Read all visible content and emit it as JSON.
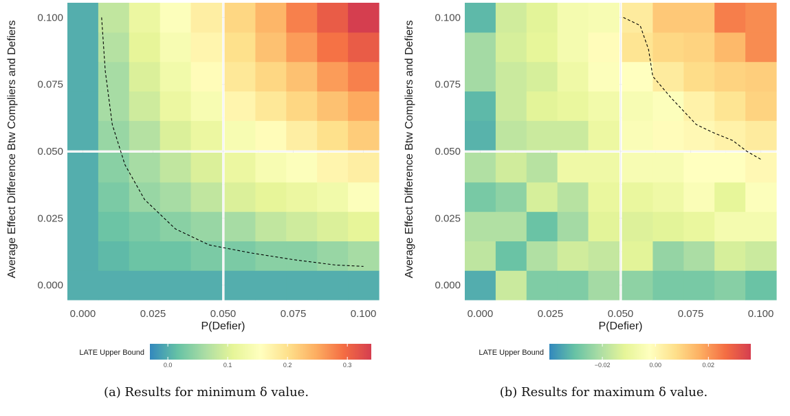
{
  "chart_data": [
    {
      "type": "heatmap",
      "caption": "(a) Results for minimum δ value.",
      "xlabel": "P(Defier)",
      "ylabel": "Average Effect Difference Btw Compliers and Defiers",
      "x": [
        0.0,
        0.011,
        0.022,
        0.033,
        0.044,
        0.056,
        0.067,
        0.078,
        0.089,
        0.1
      ],
      "y": [
        0.0,
        0.011,
        0.022,
        0.033,
        0.044,
        0.056,
        0.067,
        0.078,
        0.089,
        0.1
      ],
      "xticks": [
        "0.000",
        "0.025",
        "0.050",
        "0.075",
        "0.100"
      ],
      "yticks": [
        "0.000",
        "0.025",
        "0.050",
        "0.075",
        "0.100"
      ],
      "values": [
        [
          0.0,
          0.0,
          0.0,
          0.0,
          0.0,
          0.0,
          0.0,
          0.0,
          0.0,
          0.0
        ],
        [
          0.0,
          0.01,
          0.02,
          0.02,
          0.03,
          0.03,
          0.04,
          0.04,
          0.05,
          0.06
        ],
        [
          0.0,
          0.02,
          0.03,
          0.04,
          0.05,
          0.06,
          0.08,
          0.09,
          0.1,
          0.11
        ],
        [
          0.0,
          0.03,
          0.05,
          0.06,
          0.08,
          0.1,
          0.11,
          0.12,
          0.13,
          0.15
        ],
        [
          0.0,
          0.04,
          0.06,
          0.08,
          0.1,
          0.12,
          0.14,
          0.15,
          0.17,
          0.18
        ],
        [
          0.0,
          0.05,
          0.07,
          0.1,
          0.12,
          0.14,
          0.16,
          0.18,
          0.2,
          0.22
        ],
        [
          0.0,
          0.06,
          0.09,
          0.12,
          0.14,
          0.17,
          0.19,
          0.21,
          0.23,
          0.25
        ],
        [
          0.0,
          0.06,
          0.1,
          0.13,
          0.16,
          0.19,
          0.21,
          0.23,
          0.26,
          0.28
        ],
        [
          0.0,
          0.07,
          0.11,
          0.14,
          0.17,
          0.2,
          0.23,
          0.26,
          0.29,
          0.31
        ],
        [
          0.0,
          0.08,
          0.12,
          0.15,
          0.18,
          0.21,
          0.24,
          0.28,
          0.31,
          0.34
        ]
      ],
      "contour": [
        [
          0.0067,
          0.1
        ],
        [
          0.008,
          0.08
        ],
        [
          0.0105,
          0.06
        ],
        [
          0.015,
          0.045
        ],
        [
          0.022,
          0.032
        ],
        [
          0.033,
          0.021
        ],
        [
          0.045,
          0.015
        ],
        [
          0.06,
          0.012
        ],
        [
          0.075,
          0.0095
        ],
        [
          0.09,
          0.0075
        ],
        [
          0.1,
          0.007
        ]
      ],
      "legend": {
        "title": "LATE Upper Bound",
        "min": -0.03,
        "max": 0.34,
        "ticks": [
          0.0,
          0.1,
          0.2,
          0.3
        ],
        "tick_labels": [
          "0.0",
          "0.1",
          "0.2",
          "0.3"
        ]
      },
      "colormap": [
        "#3288bd",
        "#66c2a5",
        "#abdda4",
        "#e6f598",
        "#ffffbf",
        "#fee08b",
        "#fdae61",
        "#f46d43",
        "#d53e4f"
      ]
    },
    {
      "type": "heatmap",
      "caption": "(b) Results for maximum δ value.",
      "xlabel": "P(Defier)",
      "ylabel": "Average Effect Difference Btw Compliers and Defiers",
      "x": [
        0.0,
        0.011,
        0.022,
        0.033,
        0.044,
        0.056,
        0.067,
        0.078,
        0.089,
        0.1
      ],
      "y": [
        0.0,
        0.011,
        0.022,
        0.033,
        0.044,
        0.056,
        0.067,
        0.078,
        0.089,
        0.1
      ],
      "xticks": [
        "0.000",
        "0.025",
        "0.050",
        "0.075",
        "0.100"
      ],
      "yticks": [
        "0.000",
        "0.025",
        "0.050",
        "0.075",
        "0.100"
      ],
      "values": [
        [
          -0.034,
          -0.016,
          -0.027,
          -0.027,
          -0.022,
          -0.025,
          -0.028,
          -0.028,
          -0.026,
          -0.03
        ],
        [
          -0.018,
          -0.03,
          -0.02,
          -0.015,
          -0.017,
          -0.012,
          -0.024,
          -0.021,
          -0.014,
          -0.016
        ],
        [
          -0.02,
          -0.02,
          -0.03,
          -0.022,
          -0.012,
          -0.013,
          -0.012,
          -0.01,
          -0.006,
          -0.006
        ],
        [
          -0.028,
          -0.025,
          -0.014,
          -0.019,
          -0.01,
          -0.01,
          -0.008,
          -0.004,
          -0.011,
          -0.003
        ],
        [
          -0.02,
          -0.015,
          -0.019,
          -0.008,
          -0.008,
          -0.005,
          -0.005,
          -0.002,
          -0.002,
          0.0
        ],
        [
          -0.033,
          -0.018,
          -0.016,
          -0.016,
          -0.009,
          -0.004,
          -0.001,
          0.0,
          0.002,
          0.004
        ],
        [
          -0.032,
          -0.016,
          -0.012,
          -0.01,
          -0.007,
          -0.005,
          -0.003,
          0.002,
          0.006,
          0.01
        ],
        [
          -0.022,
          -0.016,
          -0.014,
          -0.008,
          -0.003,
          -0.002,
          0.004,
          0.008,
          0.01,
          0.011
        ],
        [
          -0.022,
          -0.014,
          -0.011,
          -0.006,
          -0.001,
          0.006,
          0.009,
          0.01,
          0.015,
          0.022
        ],
        [
          -0.032,
          -0.015,
          -0.012,
          -0.006,
          -0.005,
          0.004,
          0.012,
          0.012,
          0.024,
          0.022
        ]
      ],
      "contour": [
        [
          0.051,
          0.1
        ],
        [
          0.057,
          0.097
        ],
        [
          0.06,
          0.088
        ],
        [
          0.0615,
          0.078
        ],
        [
          0.068,
          0.07
        ],
        [
          0.077,
          0.06
        ],
        [
          0.083,
          0.057
        ],
        [
          0.09,
          0.054
        ],
        [
          0.095,
          0.05
        ],
        [
          0.1,
          0.047
        ]
      ],
      "legend": {
        "title": "LATE Upper Bound",
        "min": -0.04,
        "max": 0.036,
        "ticks": [
          -0.02,
          0.0,
          0.02
        ],
        "tick_labels": [
          "−0.02",
          "0.00",
          "0.02"
        ]
      },
      "colormap": [
        "#3288bd",
        "#66c2a5",
        "#abdda4",
        "#e6f598",
        "#ffffbf",
        "#fee08b",
        "#fdae61",
        "#f46d43",
        "#d53e4f"
      ]
    }
  ]
}
